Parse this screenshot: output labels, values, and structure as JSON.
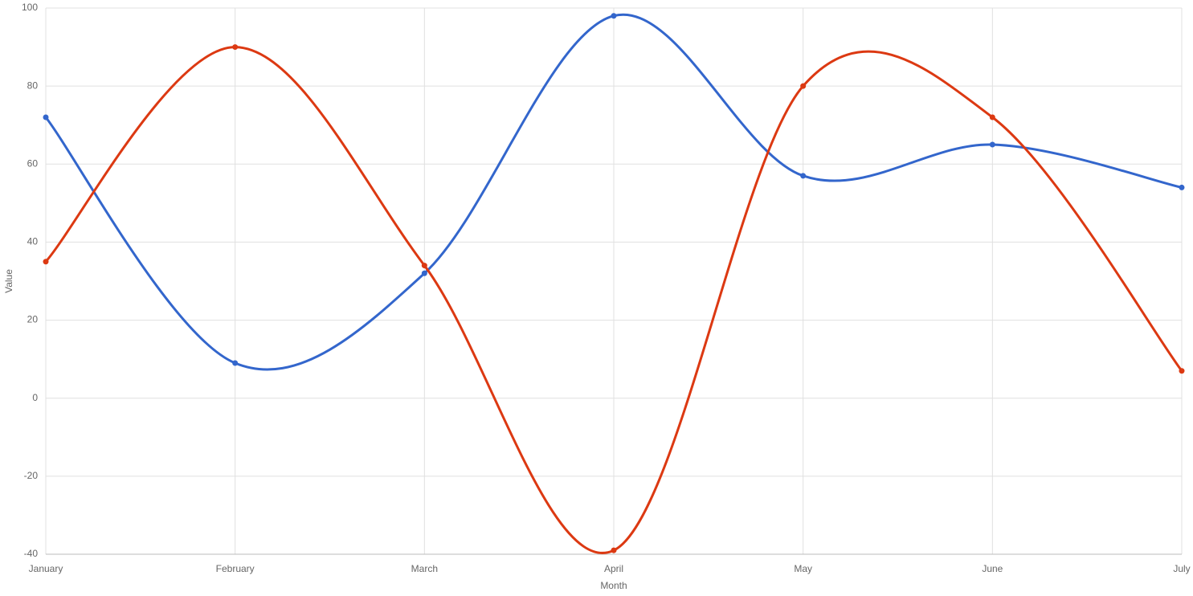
{
  "chart_data": {
    "type": "line",
    "categories": [
      "January",
      "February",
      "March",
      "April",
      "May",
      "June",
      "July"
    ],
    "series": [
      {
        "color": "#3366cc",
        "values": [
          72,
          9,
          32,
          98,
          57,
          65,
          54
        ]
      },
      {
        "color": "#dc3912",
        "values": [
          35,
          90,
          34,
          -39,
          80,
          72,
          7
        ]
      }
    ],
    "xlabel": "Month",
    "ylabel": "Value",
    "ylim": [
      -40,
      100
    ],
    "yticks": [
      -40,
      -20,
      0,
      20,
      40,
      60,
      80,
      100
    ],
    "grid": true,
    "smooth": true
  }
}
